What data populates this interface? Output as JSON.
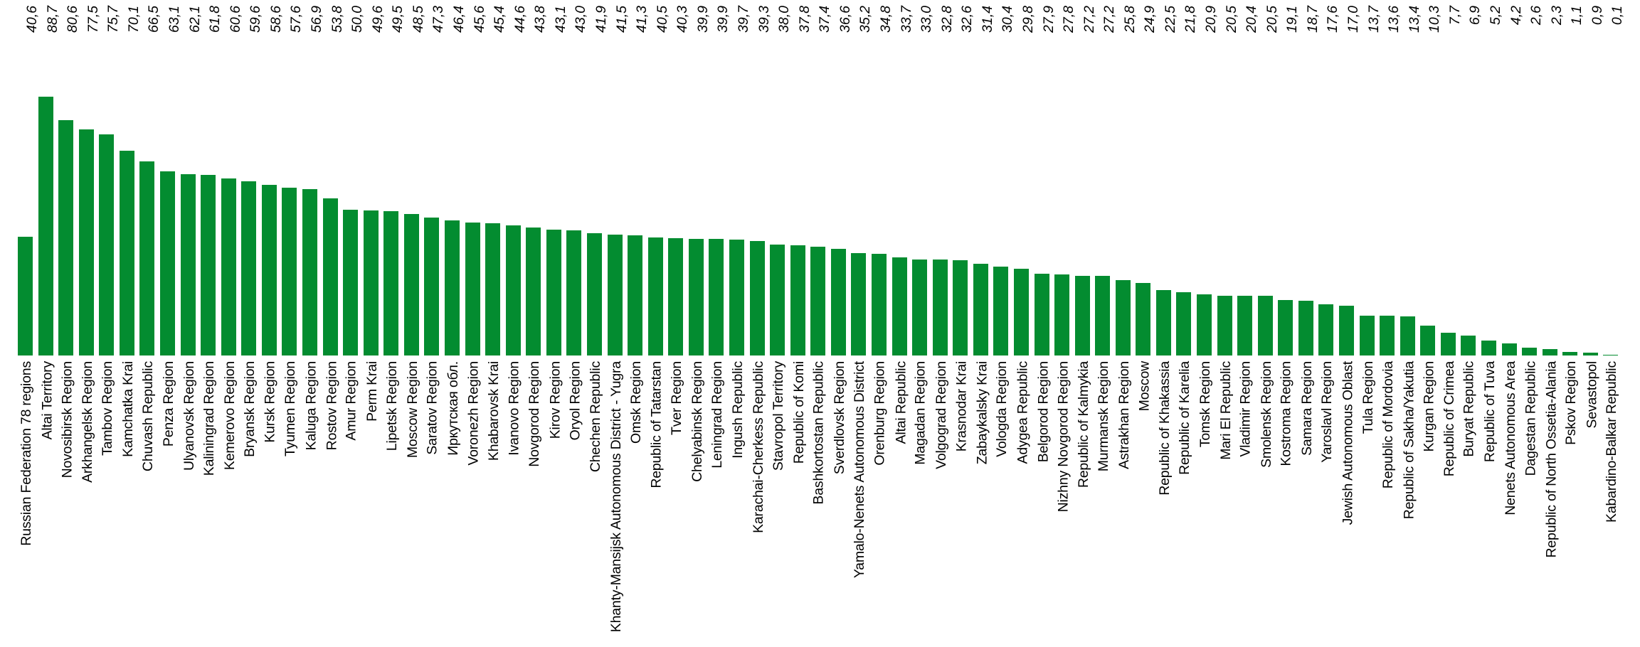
{
  "chart_data": {
    "type": "bar",
    "title": "",
    "xlabel": "",
    "ylabel": "",
    "legend": null,
    "grid": false,
    "axes_visible": false,
    "value_labels_position": "top-aligned-rotated",
    "decimal_separator": ",",
    "bar_color": "#038C30",
    "text_color": "#000000",
    "ylim": [
      0,
      90
    ],
    "categories": [
      "Russian Federation 78 regions",
      "Altai Territory",
      "Novosibirsk Region",
      "Arkhangelsk Region",
      "Tambov Region",
      "Kamchatka Krai",
      "Chuvash Republic",
      "Penza Region",
      "Ulyanovsk Region",
      "Kaliningrad Region",
      "Kemerovo Region",
      "Bryansk Region",
      "Kursk Region",
      "Tyumen Region",
      "Kaluga Region",
      "Rostov Region",
      "Amur Region",
      "Perm Krai",
      "Lipetsk Region",
      "Moscow Region",
      "Saratov Region",
      "Иркутская обл.",
      "Voronezh Region",
      "Khabarovsk Krai",
      "Ivanovo Region",
      "Novgorod Region",
      "Kirov Region",
      "Oryol Region",
      "Chechen Republic",
      "Khanty-Mansijsk Autonomous District - Yugra",
      "Omsk Region",
      "Republic of Tatarstan",
      "Tver Region",
      "Chelyabinsk Region",
      "Leningrad Region",
      "Ingush Republic",
      "Karachai-Cherkess Republic",
      "Stavropol Territory",
      "Republic of Komi",
      "Bashkortostan Republic",
      "Sverdlovsk Region",
      "Yamalo-Nenets Autonomous District",
      "Orenburg Region",
      "Altai Republic",
      "Magadan Region",
      "Volgograd Region",
      "Krasnodar Krai",
      "Zabaykalsky Krai",
      "Vologda Region",
      "Adygea Republic",
      "Belgorod Region",
      "Nizhny Novgorod Region",
      "Republic of Kalmykia",
      "Murmansk Region",
      "Astrakhan Region",
      "Moscow",
      "Republic of Khakassia",
      "Republic of Karelia",
      "Tomsk Region",
      "Mari El Republic",
      "Vladimir Region",
      "Smolensk Region",
      "Kostroma Region",
      "Samara Region",
      "Yaroslavl Region",
      "Jewish Autonomous Oblast",
      "Tula Region",
      "Republic of Mordovia",
      "Republic of Sakha/Yakutia",
      "Kurgan Region",
      "Republic of Crimea",
      "Buryat Republic",
      "Republic of Tuva",
      "Nenets Autonomous Area",
      "Dagestan Republic",
      "Republic of North Ossetia-Alania",
      "Pskov Region",
      "Sevastopol",
      "Kabardino-Balkar Republic"
    ],
    "values": [
      40.6,
      88.7,
      80.6,
      77.5,
      75.7,
      70.1,
      66.5,
      63.1,
      62.1,
      61.8,
      60.6,
      59.6,
      58.6,
      57.6,
      56.9,
      53.8,
      50.0,
      49.6,
      49.5,
      48.5,
      47.3,
      46.4,
      45.6,
      45.4,
      44.6,
      43.8,
      43.1,
      43.0,
      41.9,
      41.5,
      41.3,
      40.5,
      40.3,
      39.9,
      39.9,
      39.7,
      39.3,
      38.0,
      37.8,
      37.4,
      36.6,
      35.2,
      34.8,
      33.7,
      33.0,
      32.8,
      32.6,
      31.4,
      30.4,
      29.8,
      27.9,
      27.8,
      27.2,
      27.2,
      25.8,
      24.9,
      22.5,
      21.8,
      20.9,
      20.5,
      20.4,
      20.5,
      19.1,
      18.7,
      17.6,
      17.0,
      13.7,
      13.6,
      13.4,
      10.3,
      7.7,
      6.9,
      5.2,
      4.2,
      2.6,
      2.3,
      1.1,
      0.9,
      0.1
    ],
    "value_labels": [
      "40,6",
      "88,7",
      "80,6",
      "77,5",
      "75,7",
      "70,1",
      "66,5",
      "63,1",
      "62,1",
      "61,8",
      "60,6",
      "59,6",
      "58,6",
      "57,6",
      "56,9",
      "53,8",
      "50,0",
      "49,6",
      "49,5",
      "48,5",
      "47,3",
      "46,4",
      "45,6",
      "45,4",
      "44,6",
      "43,8",
      "43,1",
      "43,0",
      "41,9",
      "41,5",
      "41,3",
      "40,5",
      "40,3",
      "39,9",
      "39,9",
      "39,7",
      "39,3",
      "38,0",
      "37,8",
      "37,4",
      "36,6",
      "35,2",
      "34,8",
      "33,7",
      "33,0",
      "32,8",
      "32,6",
      "31,4",
      "30,4",
      "29,8",
      "27,9",
      "27,8",
      "27,2",
      "27,2",
      "25,8",
      "24,9",
      "22,5",
      "21,8",
      "20,9",
      "20,5",
      "20,4",
      "20,5",
      "19,1",
      "18,7",
      "17,6",
      "17,0",
      "13,7",
      "13,6",
      "13,4",
      "10,3",
      "7,7",
      "6,9",
      "5,2",
      "4,2",
      "2,6",
      "2,3",
      "1,1",
      "0,9",
      "0,1"
    ]
  }
}
